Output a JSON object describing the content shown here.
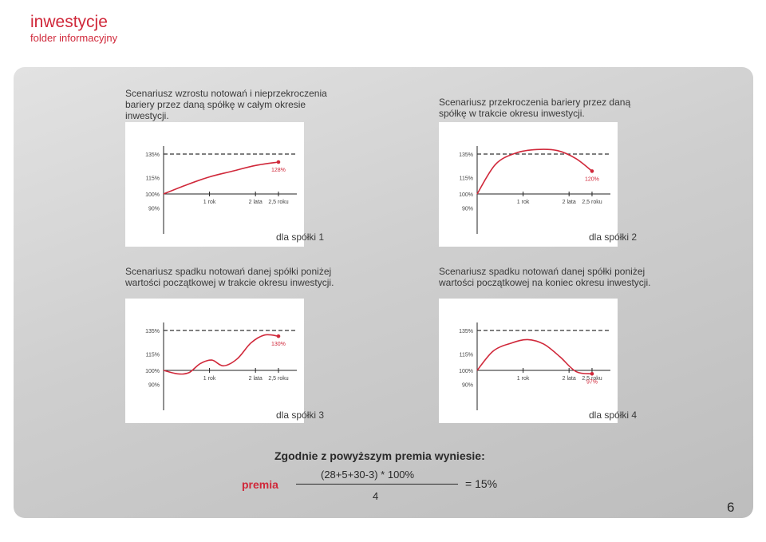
{
  "header": {
    "title": "inwestycje",
    "subtitle": "folder informacyjny"
  },
  "scenarios": [
    {
      "description": "Scenariusz wzrostu notowań i nieprzekroczenia bariery przez daną spółkę w całym okresie inwestycji.",
      "label": "dla spółki 1"
    },
    {
      "description": "Scenariusz przekroczenia bariery przez daną spółkę w trakcie okresu inwestycji.",
      "label": "dla spółki 2"
    },
    {
      "description": "Scenariusz spadku notowań danej spółki poniżej wartości początkowej w trakcie okresu inwestycji.",
      "label": "dla spółki 3"
    },
    {
      "description": "Scenariusz spadku notowań danej spółki poniżej wartości początkowej na koniec okresu inwestycji.",
      "label": "dla spółki 4"
    }
  ],
  "chart_data": [
    {
      "type": "line",
      "y_ticks": [
        "135%",
        "115%",
        "100%",
        "90%"
      ],
      "x_ticks": [
        "1 rok",
        "2 lata",
        "2,5 roku"
      ],
      "barrier": 135,
      "ylim": [
        85,
        142
      ],
      "xlim": [
        0,
        2.9
      ],
      "series": [
        {
          "x": [
            0,
            0.5,
            1,
            1.5,
            2,
            2.5
          ],
          "y": [
            100,
            108,
            115,
            120,
            125,
            128
          ]
        }
      ],
      "end_label": "128%",
      "colors": {
        "line": "#d0283a",
        "barrier": "#333333"
      }
    },
    {
      "type": "line",
      "y_ticks": [
        "135%",
        "115%",
        "100%",
        "90%"
      ],
      "x_ticks": [
        "1 rok",
        "2 lata",
        "2,5 roku"
      ],
      "barrier": 135,
      "ylim": [
        85,
        142
      ],
      "xlim": [
        0,
        2.9
      ],
      "series": [
        {
          "x": [
            0,
            0.4,
            0.85,
            1.3,
            1.75,
            2.15,
            2.5
          ],
          "y": [
            100,
            126,
            136,
            139,
            138,
            131,
            120
          ]
        }
      ],
      "end_label": "120%",
      "colors": {
        "line": "#d0283a",
        "barrier": "#333333"
      }
    },
    {
      "type": "line",
      "y_ticks": [
        "135%",
        "115%",
        "100%",
        "90%"
      ],
      "x_ticks": [
        "1 rok",
        "2 lata",
        "2,5 roku"
      ],
      "barrier": 135,
      "ylim": [
        85,
        142
      ],
      "xlim": [
        0,
        2.9
      ],
      "series": [
        {
          "x": [
            0,
            0.3,
            0.55,
            0.8,
            1.05,
            1.3,
            1.6,
            1.9,
            2.2,
            2.5
          ],
          "y": [
            100,
            97,
            98,
            106,
            109,
            104,
            110,
            124,
            131,
            130
          ]
        }
      ],
      "end_label": "130%",
      "colors": {
        "line": "#d0283a",
        "barrier": "#333333"
      }
    },
    {
      "type": "line",
      "y_ticks": [
        "135%",
        "115%",
        "100%",
        "90%"
      ],
      "x_ticks": [
        "1 rok",
        "2 lata",
        "2,5 roku"
      ],
      "barrier": 135,
      "ylim": [
        85,
        142
      ],
      "xlim": [
        0,
        2.9
      ],
      "series": [
        {
          "x": [
            0,
            0.35,
            0.75,
            1.1,
            1.45,
            1.8,
            2.15,
            2.5
          ],
          "y": [
            100,
            117,
            124,
            127,
            123,
            112,
            99,
            97
          ]
        }
      ],
      "end_label": "97%",
      "colors": {
        "line": "#d0283a",
        "barrier": "#333333"
      }
    }
  ],
  "formula": {
    "conclusion": "Zgodnie z powyższym premia wyniesie:",
    "label": "premia",
    "numerator": "(28+5+30-3) * 100%",
    "denominator": "4",
    "result": "= 15%"
  },
  "page_number": "6",
  "colors": {
    "accent": "#d0283a"
  }
}
